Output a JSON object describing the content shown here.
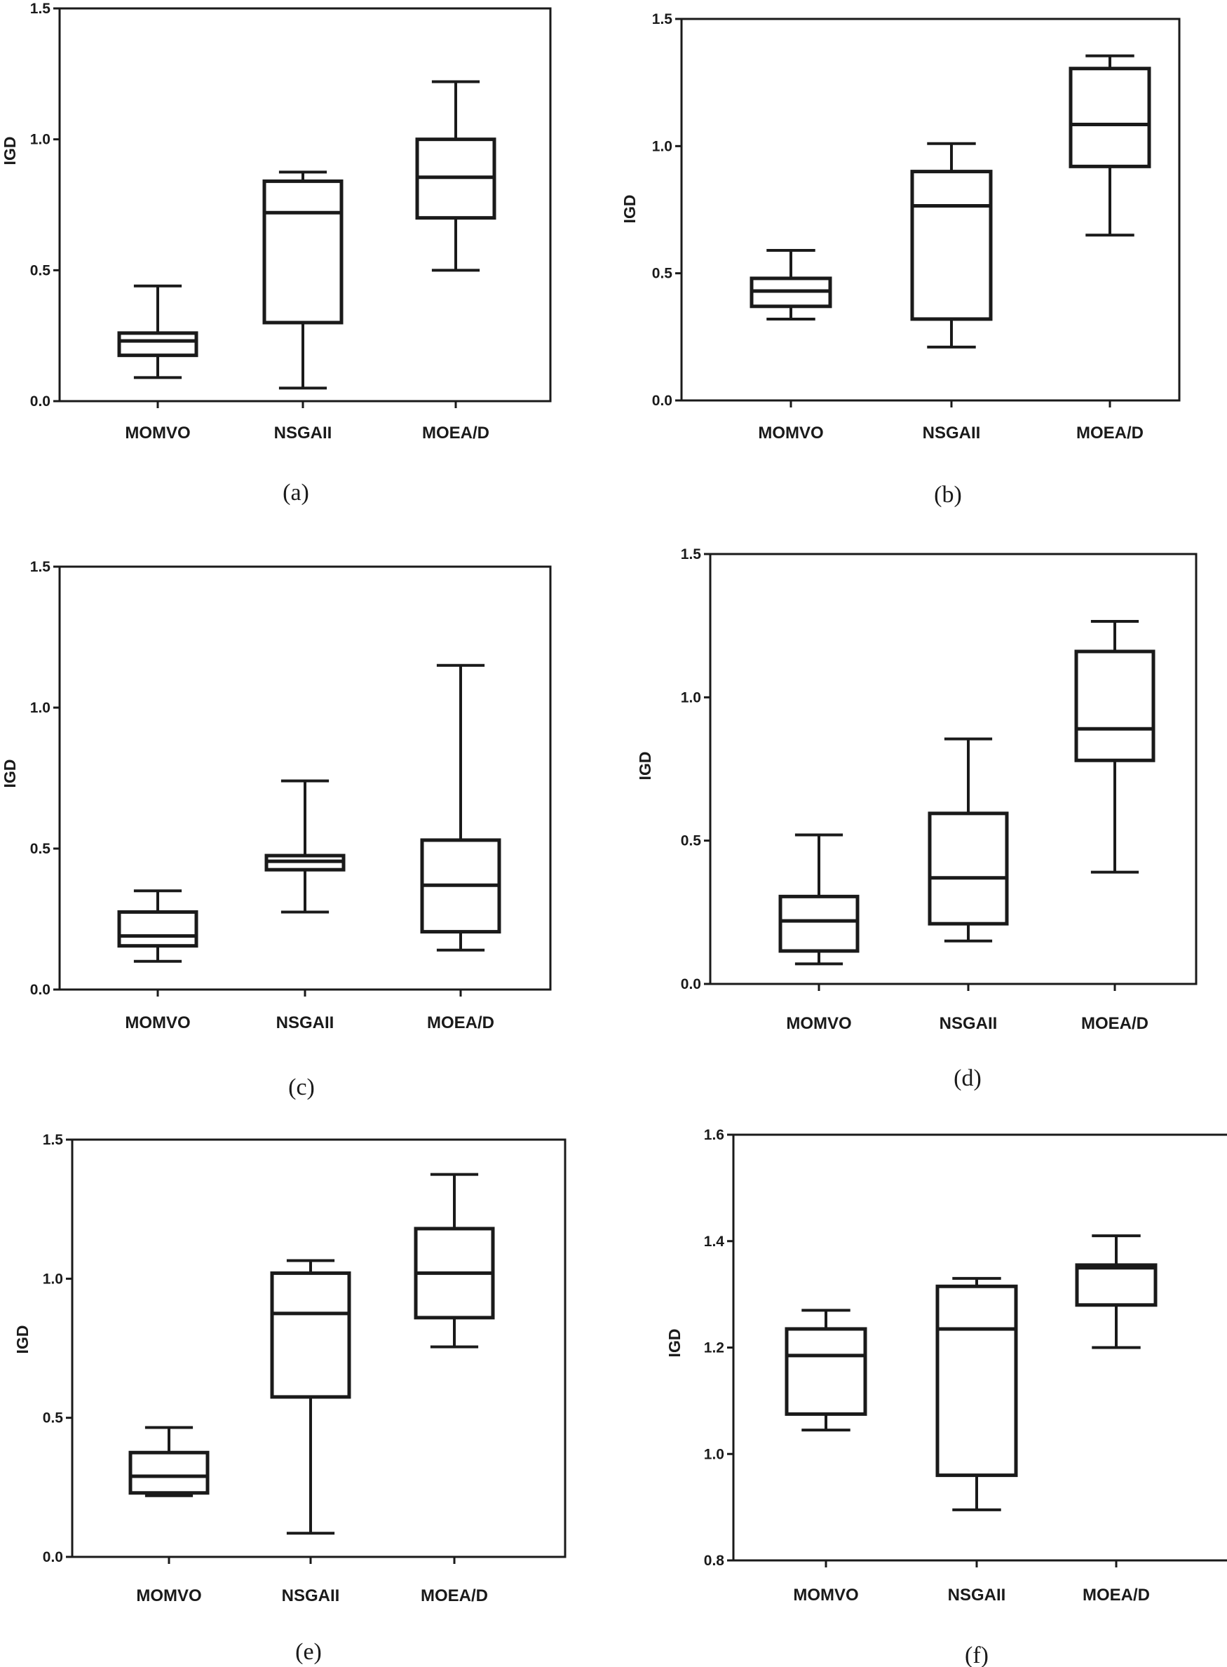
{
  "chart_data": [
    {
      "type": "box",
      "caption": "(a)",
      "ylabel": "IGD",
      "ylim": [
        0,
        1.5
      ],
      "yticks": [
        "0.0",
        "0.5",
        "1.0",
        "1.5"
      ],
      "categories": [
        "MOMVO",
        "NSGAII",
        "MOEA/D"
      ],
      "series": [
        {
          "name": "MOMVO",
          "min": 0.09,
          "q1": 0.175,
          "median": 0.23,
          "q3": 0.26,
          "max": 0.44
        },
        {
          "name": "NSGAII",
          "min": 0.05,
          "q1": 0.3,
          "median": 0.72,
          "q3": 0.84,
          "max": 0.875
        },
        {
          "name": "MOEA/D",
          "min": 0.5,
          "q1": 0.7,
          "median": 0.855,
          "q3": 1.0,
          "max": 1.22
        }
      ]
    },
    {
      "type": "box",
      "caption": "(b)",
      "ylabel": "IGD",
      "ylim": [
        0,
        1.5
      ],
      "yticks": [
        "0.0",
        "0.5",
        "1.0",
        "1.5"
      ],
      "categories": [
        "MOMVO",
        "NSGAII",
        "MOEA/D"
      ],
      "series": [
        {
          "name": "MOMVO",
          "min": 0.32,
          "q1": 0.37,
          "median": 0.43,
          "q3": 0.48,
          "max": 0.59
        },
        {
          "name": "NSGAII",
          "min": 0.21,
          "q1": 0.32,
          "median": 0.765,
          "q3": 0.9,
          "max": 1.01
        },
        {
          "name": "MOEA/D",
          "min": 0.65,
          "q1": 0.92,
          "median": 1.085,
          "q3": 1.305,
          "max": 1.355
        }
      ]
    },
    {
      "type": "box",
      "caption": "(c)",
      "ylabel": "IGD",
      "ylim": [
        0,
        1.5
      ],
      "yticks": [
        "0.0",
        "0.5",
        "1.0",
        "1.5"
      ],
      "categories": [
        "MOMVO",
        "NSGAII",
        "MOEA/D"
      ],
      "series": [
        {
          "name": "MOMVO",
          "min": 0.1,
          "q1": 0.155,
          "median": 0.19,
          "q3": 0.275,
          "max": 0.35
        },
        {
          "name": "NSGAII",
          "min": 0.275,
          "q1": 0.425,
          "median": 0.455,
          "q3": 0.475,
          "max": 0.74
        },
        {
          "name": "MOEA/D",
          "min": 0.14,
          "q1": 0.205,
          "median": 0.37,
          "q3": 0.53,
          "max": 1.15
        }
      ]
    },
    {
      "type": "box",
      "caption": "(d)",
      "ylabel": "IGD",
      "ylim": [
        0,
        1.5
      ],
      "yticks": [
        "0.0",
        "0.5",
        "1.0",
        "1.5"
      ],
      "categories": [
        "MOMVO",
        "NSGAII",
        "MOEA/D"
      ],
      "series": [
        {
          "name": "MOMVO",
          "min": 0.07,
          "q1": 0.115,
          "median": 0.22,
          "q3": 0.305,
          "max": 0.52
        },
        {
          "name": "NSGAII",
          "min": 0.15,
          "q1": 0.21,
          "median": 0.37,
          "q3": 0.595,
          "max": 0.855
        },
        {
          "name": "MOEA/D",
          "min": 0.39,
          "q1": 0.78,
          "median": 0.89,
          "q3": 1.16,
          "max": 1.265
        }
      ]
    },
    {
      "type": "box",
      "caption": "(e)",
      "ylabel": "IGD",
      "ylim": [
        0,
        1.5
      ],
      "yticks": [
        "0.0",
        "0.5",
        "1.0",
        "1.5"
      ],
      "categories": [
        "MOMVO",
        "NSGAII",
        "MOEA/D"
      ],
      "series": [
        {
          "name": "MOMVO",
          "min": 0.22,
          "q1": 0.23,
          "median": 0.29,
          "q3": 0.375,
          "max": 0.465
        },
        {
          "name": "NSGAII",
          "min": 0.085,
          "q1": 0.575,
          "median": 0.875,
          "q3": 1.02,
          "max": 1.065
        },
        {
          "name": "MOEA/D",
          "min": 0.755,
          "q1": 0.86,
          "median": 1.02,
          "q3": 1.18,
          "max": 1.375
        }
      ]
    },
    {
      "type": "box",
      "caption": "(f)",
      "ylabel": "IGD",
      "ylim": [
        0.8,
        1.6
      ],
      "yticks": [
        "0.8",
        "1.0",
        "1.2",
        "1.4",
        "1.6"
      ],
      "categories": [
        "MOMVO",
        "NSGAII",
        "MOEA/D"
      ],
      "series": [
        {
          "name": "MOMVO",
          "min": 1.045,
          "q1": 1.075,
          "median": 1.185,
          "q3": 1.235,
          "max": 1.27
        },
        {
          "name": "NSGAII",
          "min": 0.895,
          "q1": 0.96,
          "median": 1.235,
          "q3": 1.315,
          "max": 1.33
        },
        {
          "name": "MOEA/D",
          "min": 1.2,
          "q1": 1.28,
          "median": 1.35,
          "q3": 1.355,
          "max": 1.41
        }
      ]
    }
  ]
}
